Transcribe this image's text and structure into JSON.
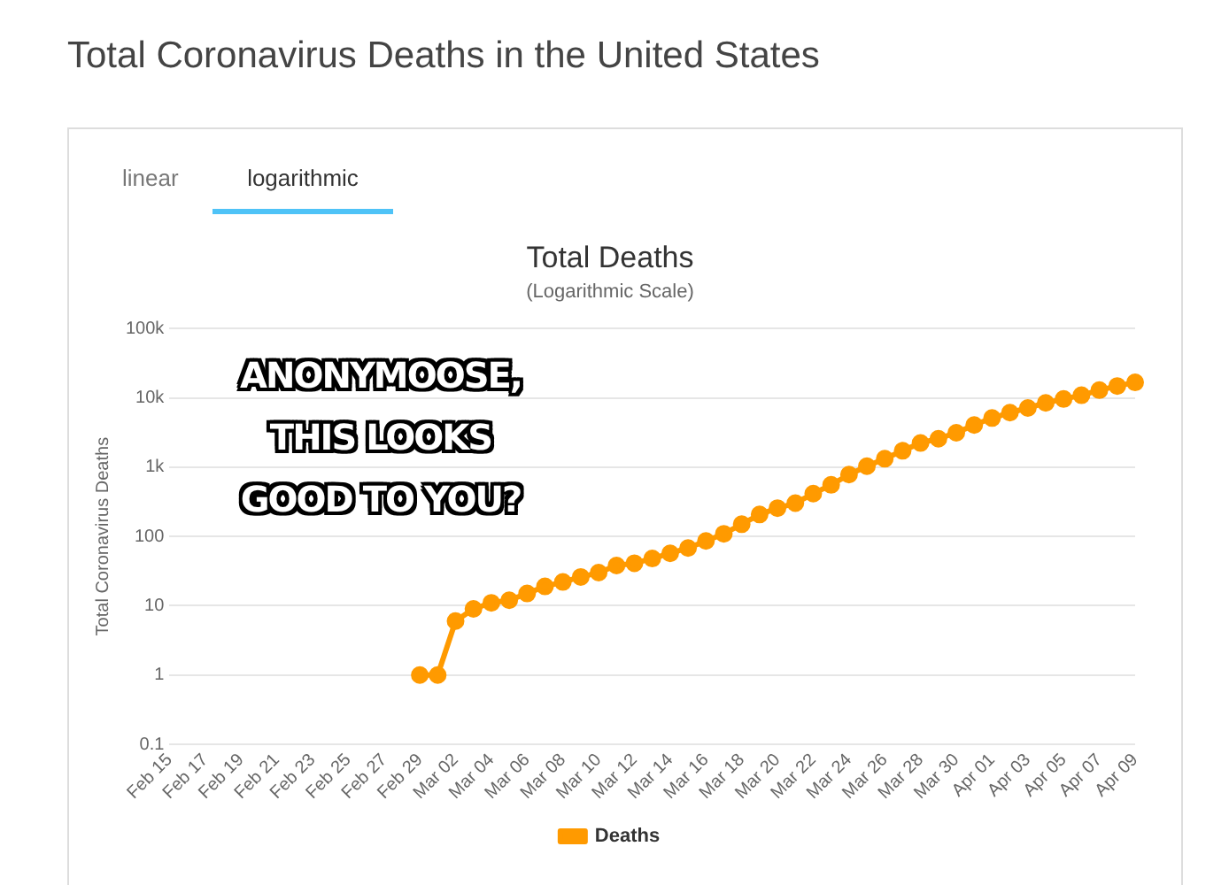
{
  "chart_data": {
    "type": "line",
    "title": "Total Deaths",
    "subtitle": "(Logarithmic Scale)",
    "ylabel": "Total Coronavirus Deaths",
    "annotations": [
      "Total Coronavirus Deaths in the United States",
      "linear",
      "logarithmic",
      "ANONYMOOSE,",
      "THIS LOOKS",
      "GOOD TO YOU?"
    ],
    "categories": [
      "Feb 15",
      null,
      "Feb 17",
      null,
      "Feb 19",
      null,
      "Feb 21",
      null,
      "Feb 23",
      null,
      "Feb 25",
      null,
      "Feb 27",
      null,
      "Feb 29",
      null,
      "Mar 02",
      null,
      "Mar 04",
      null,
      "Mar 06",
      null,
      "Mar 08",
      null,
      "Mar 10",
      null,
      "Mar 12",
      null,
      "Mar 14",
      null,
      "Mar 16",
      null,
      "Mar 18",
      null,
      "Mar 20",
      null,
      "Mar 22",
      null,
      "Mar 24",
      null,
      "Mar 26",
      null,
      "Mar 28",
      null,
      "Mar 30",
      null,
      "Apr 01",
      null,
      "Apr 03",
      null,
      "Apr 05",
      null,
      "Apr 07",
      null,
      "Apr 09"
    ],
    "series": [
      {
        "name": "Deaths",
        "color": "#ff9a00",
        "values": [
          null,
          null,
          null,
          null,
          null,
          null,
          null,
          null,
          null,
          null,
          null,
          null,
          null,
          null,
          1,
          1,
          6,
          9,
          11,
          12,
          15,
          19,
          22,
          26,
          30,
          38,
          41,
          48,
          57,
          68,
          86,
          109,
          150,
          207,
          256,
          302,
          414,
          555,
          780,
          1030,
          1320,
          1720,
          2230,
          2570,
          3130,
          4050,
          5110,
          6110,
          7130,
          8450,
          9620,
          10900,
          12900,
          14800,
          16700
        ]
      }
    ],
    "log": "y",
    "ylim": [
      0.1,
      100000
    ],
    "yticks": [
      {
        "value": 0.1,
        "label": "0.1"
      },
      {
        "value": 1,
        "label": "1"
      },
      {
        "value": 10,
        "label": "10"
      },
      {
        "value": 100,
        "label": "100"
      },
      {
        "value": 1000,
        "label": "1k"
      },
      {
        "value": 10000,
        "label": "10k"
      },
      {
        "value": 100000,
        "label": "100k"
      }
    ],
    "grid": "y",
    "legend": "bottom",
    "marker": "circle",
    "line_style": "solid"
  }
}
